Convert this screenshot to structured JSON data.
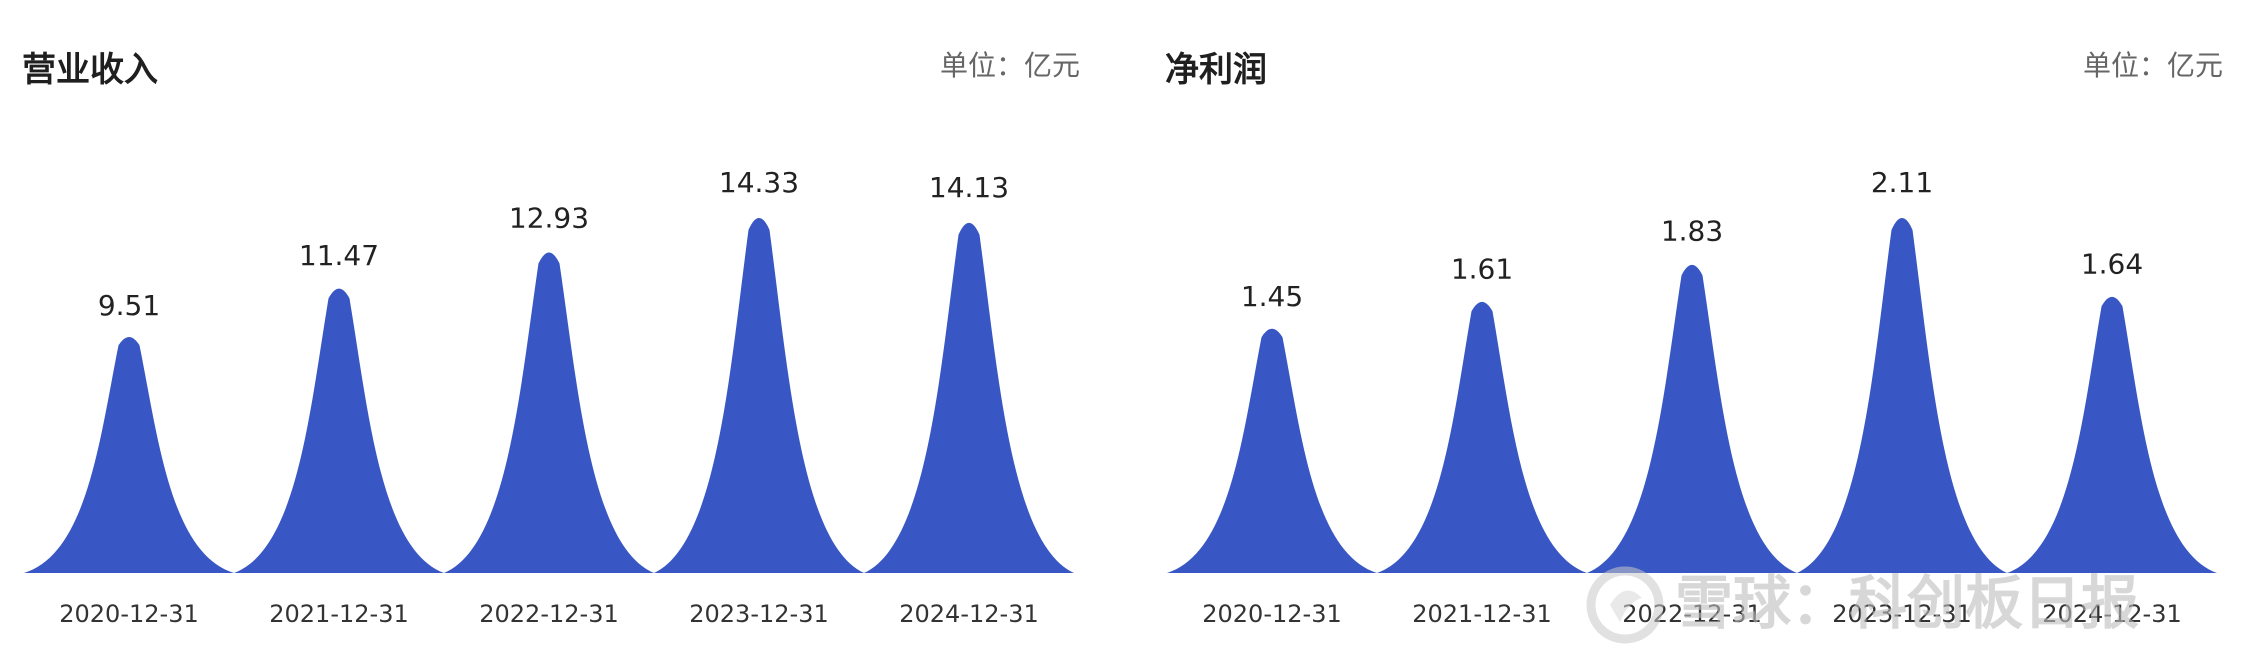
{
  "charts": [
    {
      "title": "营业收入",
      "unit": "单位：亿元"
    },
    {
      "title": "净利润",
      "unit": "单位：亿元"
    }
  ],
  "watermark": {
    "text": "雪球：科创板日报"
  },
  "colors": {
    "bar": "#3857C4",
    "label": "#222222",
    "tick": "#333333"
  },
  "chart_data": [
    {
      "type": "bar",
      "title": "营业收入",
      "categories": [
        "2020-12-31",
        "2021-12-31",
        "2022-12-31",
        "2023-12-31",
        "2024-12-31"
      ],
      "values": [
        9.51,
        11.47,
        12.93,
        14.33,
        14.13
      ],
      "value_labels": [
        "9.51",
        "11.47",
        "12.93",
        "14.33",
        "14.13"
      ],
      "ylim": [
        0,
        14.33
      ],
      "grid": false
    },
    {
      "type": "bar",
      "title": "净利润",
      "categories": [
        "2020-12-31",
        "2021-12-31",
        "2022-12-31",
        "2023-12-31",
        "2024-12-31"
      ],
      "values": [
        1.45,
        1.61,
        1.83,
        2.11,
        1.64
      ],
      "value_labels": [
        "1.45",
        "1.61",
        "1.83",
        "2.11",
        "1.64"
      ],
      "ylim": [
        0,
        2.11
      ],
      "grid": false
    }
  ]
}
